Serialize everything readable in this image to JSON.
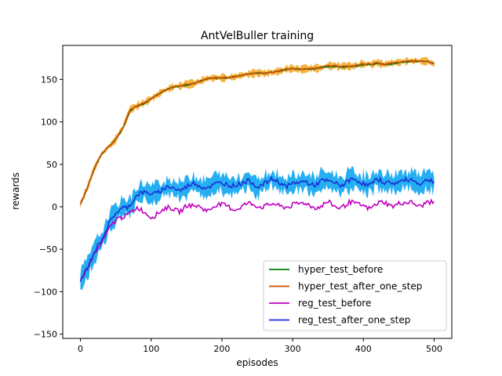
{
  "chart_data": {
    "type": "line",
    "title": "AntVelBuller training",
    "xlabel": "episodes",
    "ylabel": "rewards",
    "xlim": [
      -25,
      525
    ],
    "ylim": [
      -155,
      190
    ],
    "xticks": [
      0,
      100,
      200,
      300,
      400,
      500
    ],
    "yticks": [
      -150,
      -100,
      -50,
      0,
      50,
      100,
      150
    ],
    "grid": false,
    "legend_position": "lower-right",
    "series": [
      {
        "name": "hyper_test_before",
        "color": "#008000",
        "x": [
          0,
          10,
          20,
          30,
          40,
          50,
          60,
          70,
          80,
          90,
          100,
          110,
          120,
          130,
          140,
          150,
          160,
          170,
          180,
          190,
          200,
          210,
          220,
          230,
          240,
          250,
          260,
          270,
          280,
          290,
          300,
          310,
          320,
          330,
          340,
          350,
          360,
          370,
          380,
          390,
          400,
          410,
          420,
          430,
          440,
          450,
          460,
          470,
          480,
          490,
          500
        ],
        "values": [
          3,
          22,
          45,
          62,
          72,
          80,
          92,
          112,
          118,
          122,
          128,
          133,
          137,
          140,
          142,
          144,
          146,
          148,
          150,
          151,
          152,
          153,
          154,
          155,
          156,
          157,
          158,
          159,
          160,
          161,
          162,
          162,
          163,
          163,
          164,
          164,
          165,
          165,
          166,
          166,
          167,
          167,
          168,
          168,
          169,
          170,
          170,
          171,
          171,
          172,
          169
        ]
      },
      {
        "name": "hyper_test_after_one_step",
        "color": "#cc4c02",
        "band_color": "#f5a623",
        "x": [
          0,
          10,
          20,
          30,
          40,
          50,
          60,
          70,
          80,
          90,
          100,
          110,
          120,
          130,
          140,
          150,
          160,
          170,
          180,
          190,
          200,
          210,
          220,
          230,
          240,
          250,
          260,
          270,
          280,
          290,
          300,
          310,
          320,
          330,
          340,
          350,
          360,
          370,
          380,
          390,
          400,
          410,
          420,
          430,
          440,
          450,
          460,
          470,
          480,
          490,
          500
        ],
        "values": [
          3,
          22,
          45,
          63,
          72,
          80,
          93,
          113,
          118,
          123,
          128,
          133,
          137,
          140,
          142,
          145,
          146,
          148,
          150,
          151,
          152,
          153,
          154,
          155,
          156,
          157,
          158,
          159,
          160,
          161,
          162,
          162,
          163,
          164,
          164,
          165,
          165,
          166,
          166,
          167,
          168,
          167,
          169,
          168,
          170,
          170,
          171,
          171,
          172,
          172,
          168
        ]
      },
      {
        "name": "reg_test_before",
        "color": "#bf00bf",
        "x": [
          0,
          10,
          20,
          30,
          40,
          50,
          60,
          70,
          80,
          90,
          100,
          110,
          120,
          130,
          140,
          150,
          160,
          170,
          180,
          190,
          200,
          210,
          220,
          230,
          240,
          250,
          260,
          270,
          280,
          290,
          300,
          310,
          320,
          330,
          340,
          350,
          360,
          370,
          380,
          390,
          400,
          410,
          420,
          430,
          440,
          450,
          460,
          470,
          480,
          490,
          500
        ],
        "values": [
          -87,
          -75,
          -55,
          -40,
          -28,
          -18,
          -10,
          -5,
          -3,
          -8,
          -10,
          -6,
          -4,
          -3,
          -3,
          2,
          -2,
          0,
          -2,
          1,
          0,
          1,
          -1,
          0,
          2,
          3,
          2,
          1,
          0,
          2,
          3,
          1,
          4,
          2,
          0,
          3,
          1,
          2,
          4,
          1,
          3,
          0,
          2,
          4,
          3,
          5,
          2,
          4,
          3,
          6,
          1
        ]
      },
      {
        "name": "reg_test_after_one_step",
        "color": "#1a2fd6",
        "band_color": "#00a0f0",
        "x": [
          0,
          10,
          20,
          30,
          40,
          50,
          60,
          70,
          80,
          90,
          100,
          110,
          120,
          130,
          140,
          150,
          160,
          170,
          180,
          190,
          200,
          210,
          220,
          230,
          240,
          250,
          260,
          270,
          280,
          290,
          300,
          310,
          320,
          330,
          340,
          350,
          360,
          370,
          380,
          390,
          400,
          410,
          420,
          430,
          440,
          450,
          460,
          470,
          480,
          490,
          500
        ],
        "values": [
          -87,
          -75,
          -52,
          -35,
          -22,
          -10,
          0,
          4,
          12,
          15,
          18,
          18,
          20,
          22,
          22,
          24,
          25,
          24,
          26,
          26,
          25,
          27,
          28,
          27,
          28,
          26,
          29,
          30,
          28,
          27,
          28,
          26,
          29,
          28,
          30,
          27,
          29,
          28,
          30,
          29,
          29,
          28,
          30,
          27,
          31,
          30,
          29,
          31,
          30,
          32,
          27
        ]
      }
    ]
  }
}
